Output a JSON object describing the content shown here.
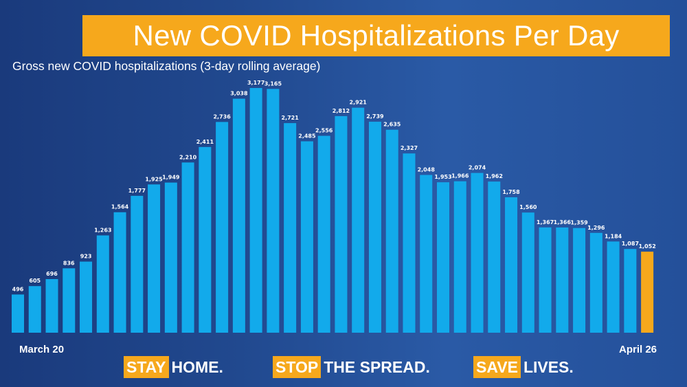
{
  "title": "New COVID Hospitalizations Per Day",
  "slogans": [
    {
      "highlight": "STAY",
      "rest": "HOME."
    },
    {
      "highlight": "STOP",
      "rest": "THE SPREAD."
    },
    {
      "highlight": "SAVE",
      "rest": "LIVES."
    }
  ],
  "colors": {
    "bar": "#12aaeb",
    "last_bar": "#f6a81c",
    "banner": "#f6a81c"
  },
  "chart_data": {
    "type": "bar",
    "title": "New COVID Hospitalizations Per Day",
    "subtitle": "Gross new COVID hospitalizations (3-day rolling average)",
    "x_start_label": "March 20",
    "x_end_label": "April 26",
    "values": [
      496,
      605,
      696,
      836,
      923,
      1263,
      1564,
      1777,
      1925,
      1949,
      2210,
      2411,
      2736,
      3038,
      3177,
      3165,
      2721,
      2485,
      2556,
      2812,
      2921,
      2739,
      2635,
      2327,
      2048,
      1953,
      1966,
      2074,
      1962,
      1758,
      1560,
      1367,
      1366,
      1359,
      1296,
      1184,
      1087,
      1052
    ],
    "highlight_last": true,
    "ylim": [
      0,
      3200
    ],
    "grid": false
  }
}
